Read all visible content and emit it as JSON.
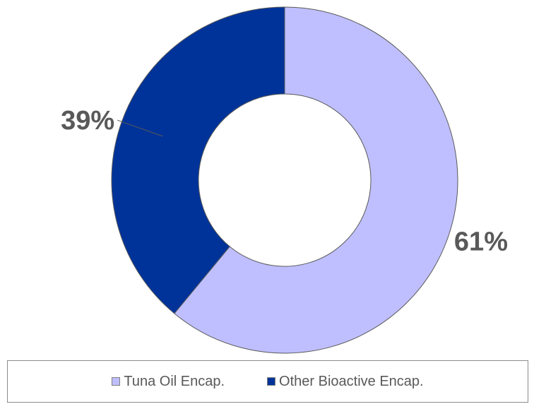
{
  "chart_data": {
    "type": "pie",
    "variant": "donut",
    "categories": [
      "Tuna Oil Encap.",
      "Other Bioactive Encap."
    ],
    "values": [
      61,
      39
    ],
    "data_labels": [
      "61%",
      "39%"
    ],
    "colors": [
      "#BFBFFF",
      "#003399"
    ],
    "legend_position": "bottom"
  },
  "legend": {
    "items": [
      {
        "label": "Tuna Oil Encap.",
        "color": "#BFBFFF"
      },
      {
        "label": "Other Bioactive Encap.",
        "color": "#003399"
      }
    ]
  }
}
